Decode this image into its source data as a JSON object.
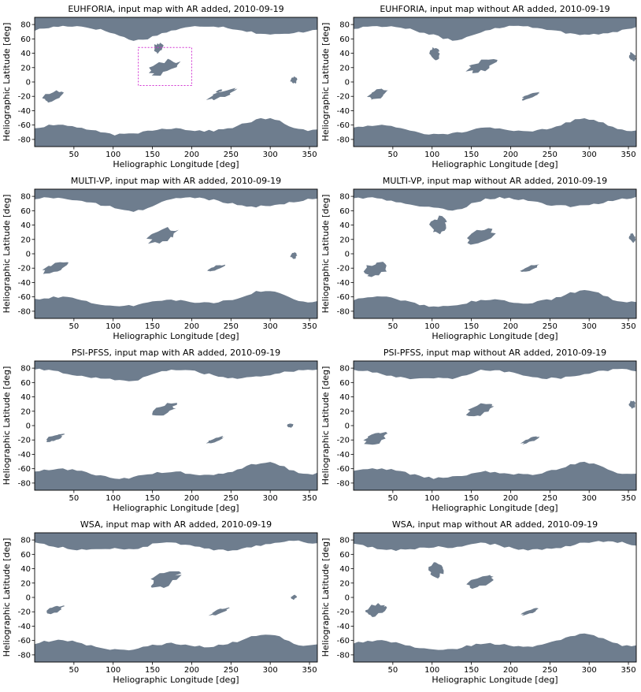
{
  "colors": {
    "coronal_hole": "#6e7d8e",
    "background": "#ffffff",
    "highlight_box": "#d233d2"
  },
  "chart_data": [
    {
      "type": "heatmap",
      "title": "EUHFORIA, input map with AR added, 2010-09-19",
      "xlabel": "Heliographic Longitude [deg]",
      "ylabel": "Heliographic Latitude [deg]",
      "xlim": [
        0,
        360
      ],
      "ylim": [
        -90,
        90
      ],
      "xticks": [
        50,
        100,
        150,
        200,
        250,
        300,
        350
      ],
      "yticks": [
        -80,
        -60,
        -40,
        -20,
        0,
        20,
        40,
        60,
        80
      ],
      "legend": "none",
      "highlight_region": {
        "lon": [
          132,
          200
        ],
        "lat": [
          -5,
          48
        ]
      },
      "regions": [
        {
          "lon": [
            140,
            188
          ],
          "lat": [
            5,
            35
          ]
        },
        {
          "lon": [
            150,
            165
          ],
          "lat": [
            35,
            60
          ]
        },
        {
          "lon": [
            5,
            40
          ],
          "lat": [
            -30,
            -10
          ]
        },
        {
          "lon": [
            215,
            260
          ],
          "lat": [
            -25,
            -10
          ]
        },
        {
          "lon": [
            230,
            240
          ],
          "lat": [
            -15,
            -10
          ]
        },
        {
          "lon": [
            325,
            335
          ],
          "lat": [
            -5,
            10
          ]
        }
      ]
    },
    {
      "type": "heatmap",
      "title": "EUHFORIA, input map without AR added, 2010-09-19",
      "xlabel": "Heliographic Longitude [deg]",
      "ylabel": "Heliographic Latitude [deg]",
      "xlim": [
        0,
        360
      ],
      "ylim": [
        -90,
        90
      ],
      "xticks": [
        50,
        100,
        150,
        200,
        250,
        300,
        350
      ],
      "yticks": [
        -80,
        -60,
        -40,
        -20,
        0,
        20,
        40,
        60,
        80
      ],
      "legend": "none",
      "regions": [
        {
          "lon": [
            140,
            185
          ],
          "lat": [
            10,
            35
          ]
        },
        {
          "lon": [
            95,
            110
          ],
          "lat": [
            25,
            55
          ]
        },
        {
          "lon": [
            15,
            45
          ],
          "lat": [
            -30,
            -5
          ]
        },
        {
          "lon": [
            210,
            240
          ],
          "lat": [
            -25,
            -15
          ]
        },
        {
          "lon": [
            350,
            360
          ],
          "lat": [
            25,
            45
          ]
        }
      ]
    },
    {
      "type": "heatmap",
      "title": "MULTI-VP, input map with AR added, 2010-09-19",
      "xlabel": "Heliographic Longitude [deg]",
      "ylabel": "Heliographic Latitude [deg]",
      "xlim": [
        0,
        360
      ],
      "ylim": [
        -90,
        90
      ],
      "xticks": [
        50,
        100,
        150,
        200,
        250,
        300,
        350
      ],
      "yticks": [
        -80,
        -60,
        -40,
        -20,
        0,
        20,
        40,
        60,
        80
      ],
      "legend": "none",
      "regions": [
        {
          "lon": [
            140,
            185
          ],
          "lat": [
            10,
            40
          ]
        },
        {
          "lon": [
            5,
            45
          ],
          "lat": [
            -30,
            -10
          ]
        },
        {
          "lon": [
            215,
            245
          ],
          "lat": [
            -25,
            -15
          ]
        },
        {
          "lon": [
            325,
            335
          ],
          "lat": [
            -10,
            5
          ]
        }
      ]
    },
    {
      "type": "heatmap",
      "title": "MULTI-VP, input map without AR added, 2010-09-19",
      "xlabel": "Heliographic Longitude [deg]",
      "ylabel": "Heliographic Latitude [deg]",
      "xlim": [
        0,
        360
      ],
      "ylim": [
        -90,
        90
      ],
      "xticks": [
        50,
        100,
        150,
        200,
        250,
        300,
        350
      ],
      "yticks": [
        -80,
        -60,
        -40,
        -20,
        0,
        20,
        40,
        60,
        80
      ],
      "legend": "none",
      "regions": [
        {
          "lon": [
            140,
            185
          ],
          "lat": [
            10,
            40
          ]
        },
        {
          "lon": [
            95,
            120
          ],
          "lat": [
            20,
            60
          ]
        },
        {
          "lon": [
            10,
            45
          ],
          "lat": [
            -40,
            -5
          ]
        },
        {
          "lon": [
            210,
            240
          ],
          "lat": [
            -25,
            -15
          ]
        },
        {
          "lon": [
            350,
            360
          ],
          "lat": [
            10,
            35
          ]
        }
      ]
    },
    {
      "type": "heatmap",
      "title": "PSI-PFSS, input map with AR added, 2010-09-19",
      "xlabel": "Heliographic Longitude [deg]",
      "ylabel": "Heliographic Latitude [deg]",
      "xlim": [
        0,
        360
      ],
      "ylim": [
        -90,
        90
      ],
      "xticks": [
        50,
        100,
        150,
        200,
        250,
        300,
        350
      ],
      "yticks": [
        -80,
        -60,
        -40,
        -20,
        0,
        20,
        40,
        60,
        80
      ],
      "legend": "none",
      "regions": [
        {
          "lon": [
            145,
            185
          ],
          "lat": [
            10,
            35
          ]
        },
        {
          "lon": [
            10,
            40
          ],
          "lat": [
            -25,
            -10
          ]
        },
        {
          "lon": [
            215,
            245
          ],
          "lat": [
            -25,
            -15
          ]
        },
        {
          "lon": [
            320,
            330
          ],
          "lat": [
            -5,
            5
          ]
        }
      ]
    },
    {
      "type": "heatmap",
      "title": "PSI-PFSS, input map without AR added, 2010-09-19",
      "xlabel": "Heliographic Longitude [deg]",
      "ylabel": "Heliographic Latitude [deg]",
      "xlim": [
        0,
        360
      ],
      "ylim": [
        -90,
        90
      ],
      "xticks": [
        50,
        100,
        150,
        200,
        250,
        300,
        350
      ],
      "yticks": [
        -80,
        -60,
        -40,
        -20,
        0,
        20,
        40,
        60,
        80
      ],
      "legend": "none",
      "regions": [
        {
          "lon": [
            140,
            185
          ],
          "lat": [
            10,
            35
          ]
        },
        {
          "lon": [
            10,
            45
          ],
          "lat": [
            -30,
            -5
          ]
        },
        {
          "lon": [
            210,
            240
          ],
          "lat": [
            -25,
            -15
          ]
        },
        {
          "lon": [
            350,
            360
          ],
          "lat": [
            20,
            40
          ]
        }
      ]
    },
    {
      "type": "heatmap",
      "title": "WSA, input map with AR added, 2010-09-19",
      "xlabel": "Heliographic Longitude [deg]",
      "ylabel": "Heliographic Latitude [deg]",
      "xlim": [
        0,
        360
      ],
      "ylim": [
        -90,
        90
      ],
      "xticks": [
        50,
        100,
        150,
        200,
        250,
        300,
        350
      ],
      "yticks": [
        -80,
        -60,
        -40,
        -20,
        0,
        20,
        40,
        60,
        80
      ],
      "legend": "none",
      "regions": [
        {
          "lon": [
            140,
            190
          ],
          "lat": [
            10,
            40
          ]
        },
        {
          "lon": [
            10,
            40
          ],
          "lat": [
            -25,
            -10
          ]
        },
        {
          "lon": [
            220,
            250
          ],
          "lat": [
            -25,
            -15
          ]
        },
        {
          "lon": [
            325,
            335
          ],
          "lat": [
            -5,
            5
          ]
        }
      ]
    },
    {
      "type": "heatmap",
      "title": "WSA, input map without AR added, 2010-09-19",
      "xlabel": "Heliographic Longitude [deg]",
      "ylabel": "Heliographic Latitude [deg]",
      "xlim": [
        0,
        360
      ],
      "ylim": [
        -90,
        90
      ],
      "xticks": [
        50,
        100,
        150,
        200,
        250,
        300,
        350
      ],
      "yticks": [
        -80,
        -60,
        -40,
        -20,
        0,
        20,
        40,
        60,
        80
      ],
      "legend": "none",
      "regions": [
        {
          "lon": [
            140,
            185
          ],
          "lat": [
            10,
            35
          ]
        },
        {
          "lon": [
            95,
            115
          ],
          "lat": [
            20,
            55
          ]
        },
        {
          "lon": [
            10,
            45
          ],
          "lat": [
            -30,
            -5
          ]
        },
        {
          "lon": [
            210,
            240
          ],
          "lat": [
            -25,
            -15
          ]
        }
      ]
    }
  ]
}
